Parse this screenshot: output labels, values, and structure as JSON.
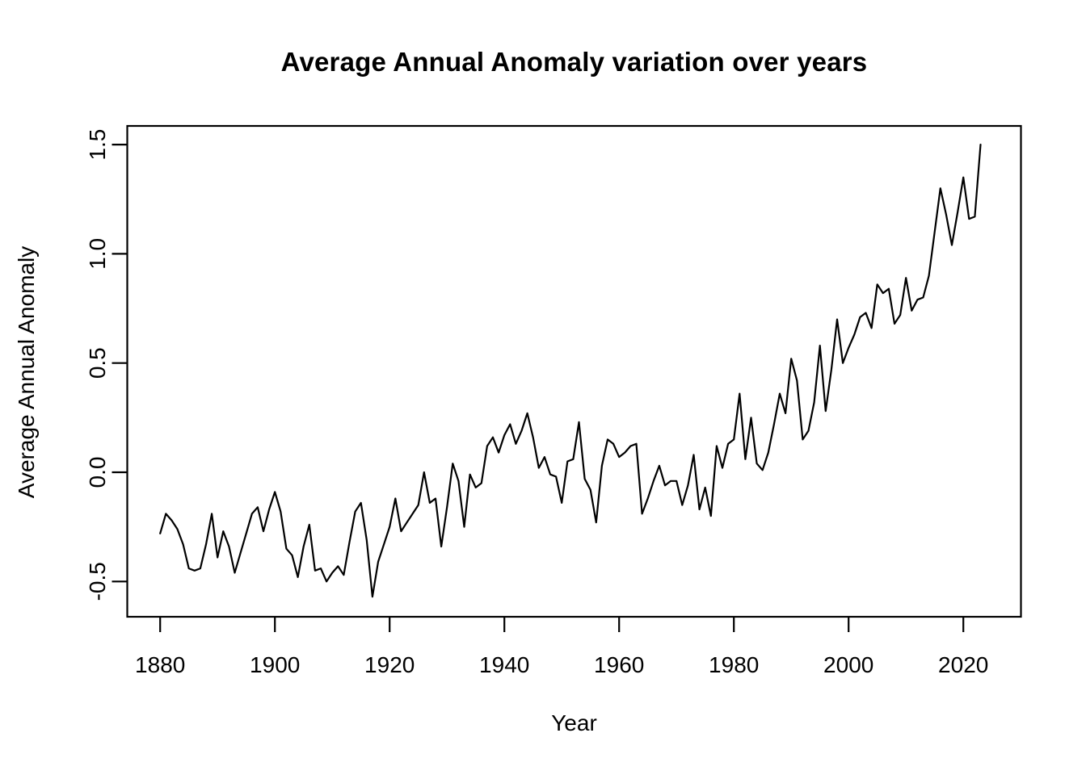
{
  "title": "Average Annual Anomaly variation over years",
  "x_axis": {
    "label": "Year",
    "tick_labels": [
      "1880",
      "1900",
      "1920",
      "1940",
      "1960",
      "1980",
      "2000",
      "2020"
    ],
    "tick_values": [
      1880,
      1900,
      1920,
      1940,
      1960,
      1980,
      2000,
      2020
    ]
  },
  "y_axis": {
    "label": "Average Annual Anomaly",
    "tick_labels": [
      "1.5",
      "1.0",
      "0.5",
      "0.0",
      "-0.5"
    ],
    "tick_values": [
      1.5,
      1.0,
      0.5,
      0.0,
      -0.5
    ]
  },
  "colors": {
    "line": "#000000",
    "axis": "#000000",
    "text": "#000000",
    "background": "#ffffff"
  },
  "chart_data": {
    "type": "line",
    "title": "Average Annual Anomaly variation over years",
    "xlabel": "Year",
    "ylabel": "Average Annual Anomaly",
    "xlim": [
      1880,
      2023
    ],
    "ylim": [
      -0.57,
      1.5
    ],
    "grid": false,
    "legend": false,
    "x_ticks": [
      1880,
      1900,
      1920,
      1940,
      1960,
      1980,
      2000,
      2020
    ],
    "y_ticks": [
      1.5,
      1.0,
      0.5,
      0.0,
      -0.5
    ],
    "years": [
      1880,
      1881,
      1882,
      1883,
      1884,
      1885,
      1886,
      1887,
      1888,
      1889,
      1890,
      1891,
      1892,
      1893,
      1894,
      1895,
      1896,
      1897,
      1898,
      1899,
      1900,
      1901,
      1902,
      1903,
      1904,
      1905,
      1906,
      1907,
      1908,
      1909,
      1910,
      1911,
      1912,
      1913,
      1914,
      1915,
      1916,
      1917,
      1918,
      1919,
      1920,
      1921,
      1922,
      1923,
      1924,
      1925,
      1926,
      1927,
      1928,
      1929,
      1930,
      1931,
      1932,
      1933,
      1934,
      1935,
      1936,
      1937,
      1938,
      1939,
      1940,
      1941,
      1942,
      1943,
      1944,
      1945,
      1946,
      1947,
      1948,
      1949,
      1950,
      1951,
      1952,
      1953,
      1954,
      1955,
      1956,
      1957,
      1958,
      1959,
      1960,
      1961,
      1962,
      1963,
      1964,
      1965,
      1966,
      1967,
      1968,
      1969,
      1970,
      1971,
      1972,
      1973,
      1974,
      1975,
      1976,
      1977,
      1978,
      1979,
      1980,
      1981,
      1982,
      1983,
      1984,
      1985,
      1986,
      1987,
      1988,
      1989,
      1990,
      1991,
      1992,
      1993,
      1994,
      1995,
      1996,
      1997,
      1998,
      1999,
      2000,
      2001,
      2002,
      2003,
      2004,
      2005,
      2006,
      2007,
      2008,
      2009,
      2010,
      2011,
      2012,
      2013,
      2014,
      2015,
      2016,
      2017,
      2018,
      2019,
      2020,
      2021,
      2022,
      2023
    ],
    "values": [
      -0.28,
      -0.19,
      -0.22,
      -0.26,
      -0.33,
      -0.44,
      -0.45,
      -0.44,
      -0.33,
      -0.19,
      -0.39,
      -0.27,
      -0.34,
      -0.46,
      -0.37,
      -0.28,
      -0.19,
      -0.16,
      -0.27,
      -0.17,
      -0.09,
      -0.18,
      -0.35,
      -0.38,
      -0.48,
      -0.34,
      -0.24,
      -0.45,
      -0.44,
      -0.5,
      -0.46,
      -0.43,
      -0.47,
      -0.32,
      -0.18,
      -0.14,
      -0.31,
      -0.57,
      -0.41,
      -0.33,
      -0.25,
      -0.12,
      -0.27,
      -0.23,
      -0.19,
      -0.15,
      0.0,
      -0.14,
      -0.12,
      -0.34,
      -0.16,
      0.04,
      -0.04,
      -0.25,
      -0.01,
      -0.07,
      -0.05,
      0.12,
      0.16,
      0.09,
      0.17,
      0.22,
      0.13,
      0.19,
      0.27,
      0.16,
      0.02,
      0.07,
      -0.01,
      -0.02,
      -0.14,
      0.05,
      0.06,
      0.23,
      -0.03,
      -0.08,
      -0.23,
      0.03,
      0.15,
      0.13,
      0.07,
      0.09,
      0.12,
      0.13,
      -0.19,
      -0.12,
      -0.04,
      0.03,
      -0.06,
      -0.04,
      -0.04,
      -0.15,
      -0.06,
      0.08,
      -0.17,
      -0.07,
      -0.2,
      0.12,
      0.02,
      0.13,
      0.15,
      0.36,
      0.06,
      0.25,
      0.04,
      0.01,
      0.09,
      0.22,
      0.36,
      0.27,
      0.52,
      0.42,
      0.15,
      0.19,
      0.32,
      0.58,
      0.28,
      0.47,
      0.7,
      0.5,
      0.57,
      0.63,
      0.71,
      0.73,
      0.66,
      0.86,
      0.82,
      0.84,
      0.68,
      0.72,
      0.89,
      0.74,
      0.79,
      0.8,
      0.9,
      1.1,
      1.3,
      1.18,
      1.04,
      1.19,
      1.35,
      1.16,
      1.17,
      1.5
    ]
  }
}
